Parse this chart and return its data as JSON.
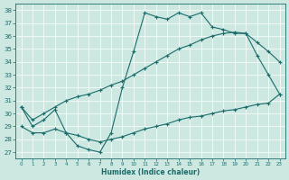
{
  "xlabel": "Humidex (Indice chaleur)",
  "xlim": [
    -0.5,
    23.5
  ],
  "ylim": [
    26.5,
    38.5
  ],
  "yticks": [
    27,
    28,
    29,
    30,
    31,
    32,
    33,
    34,
    35,
    36,
    37,
    38
  ],
  "xticks": [
    0,
    1,
    2,
    3,
    4,
    5,
    6,
    7,
    8,
    9,
    10,
    11,
    12,
    13,
    14,
    15,
    16,
    17,
    18,
    19,
    20,
    21,
    22,
    23
  ],
  "bg_color": "#cce8e0",
  "line_color": "#1a6b6b",
  "y_jagged": [
    30.5,
    29.0,
    29.5,
    30.3,
    28.5,
    27.5,
    27.2,
    27.0,
    28.5,
    32.0,
    34.8,
    37.8,
    37.5,
    37.3,
    37.8,
    37.5,
    37.8,
    36.7,
    36.5,
    36.2,
    36.2,
    34.5,
    33.0,
    31.5
  ],
  "y_upper": [
    30.5,
    29.5,
    30.0,
    30.5,
    31.0,
    31.3,
    31.5,
    31.8,
    32.2,
    32.5,
    33.0,
    33.5,
    34.0,
    34.5,
    35.0,
    35.3,
    35.7,
    36.0,
    36.2,
    36.3,
    36.2,
    35.5,
    34.8,
    34.0
  ],
  "y_lower": [
    29.0,
    28.5,
    28.5,
    28.8,
    28.5,
    28.3,
    28.0,
    27.8,
    28.0,
    28.2,
    28.5,
    28.8,
    29.0,
    29.2,
    29.5,
    29.7,
    29.8,
    30.0,
    30.2,
    30.3,
    30.5,
    30.7,
    30.8,
    31.5
  ]
}
